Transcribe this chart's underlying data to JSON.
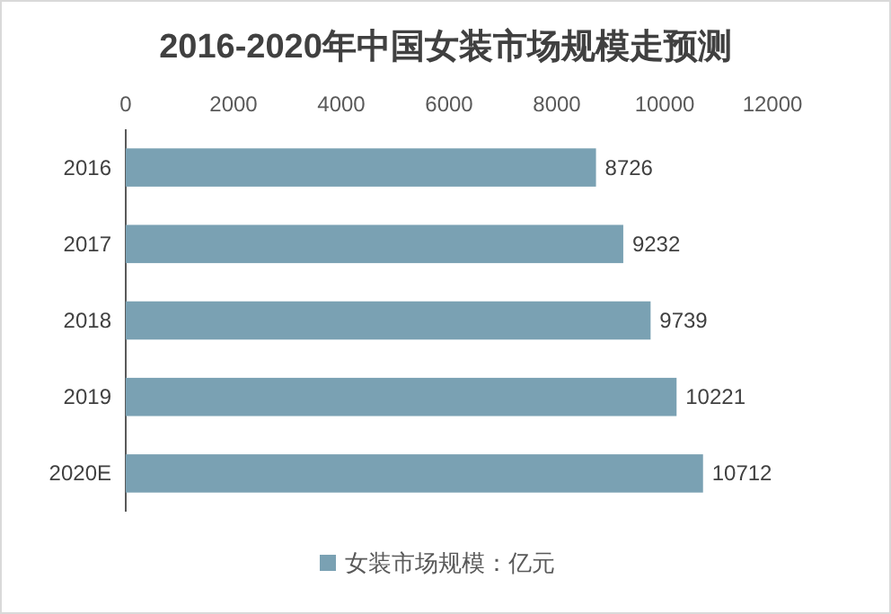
{
  "chart_data": {
    "type": "bar",
    "orientation": "horizontal",
    "title": "2016-2020年中国女装市场规模走预测",
    "categories": [
      "2016",
      "2017",
      "2018",
      "2019",
      "2020E"
    ],
    "series": [
      {
        "name": "女装市场规模：亿元",
        "color": "#7aa1b3",
        "values": [
          8726,
          9232,
          9739,
          10221,
          10712
        ]
      }
    ],
    "xlim": [
      0,
      12000
    ],
    "xticks": [
      0,
      2000,
      4000,
      6000,
      8000,
      10000,
      12000
    ],
    "data_labels": true,
    "legend": "bottom"
  }
}
